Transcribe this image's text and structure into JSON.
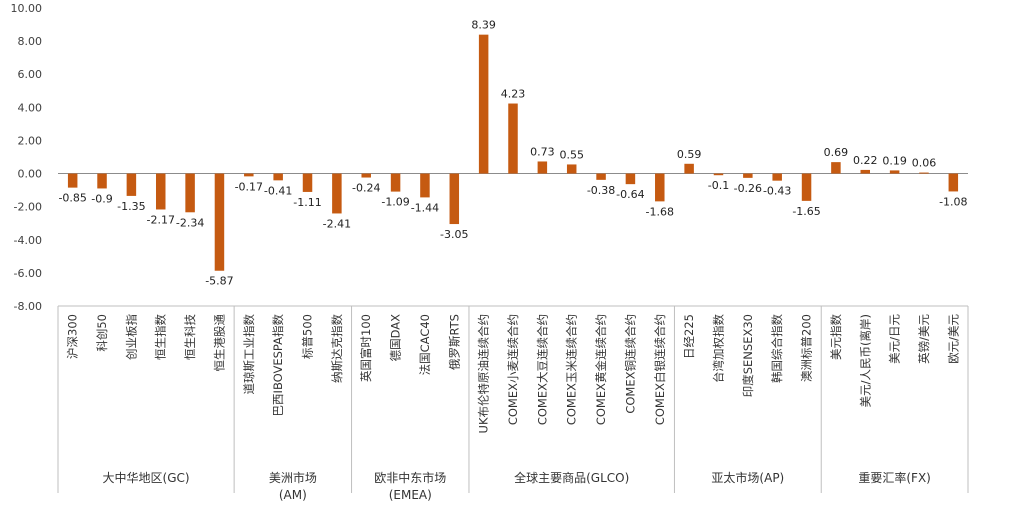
{
  "chart_data": {
    "type": "bar",
    "title": "",
    "xlabel": "",
    "ylabel": "",
    "ylim": [
      -8,
      10
    ],
    "yticks": [
      "10.00",
      "8.00",
      "6.00",
      "4.00",
      "2.00",
      "0.00",
      "-2.00",
      "-4.00",
      "-6.00",
      "-8.00"
    ],
    "grid": false,
    "legend": "none",
    "bar_color": "#C55A11",
    "categories": [
      "沪深300",
      "科创50",
      "创业板指",
      "恒生指数",
      "恒生科技",
      "恒生港股通",
      "道琼斯工业指数",
      "巴西IBOVESPA指数",
      "标普500",
      "纳斯达克指数",
      "英国富时100",
      "德国DAX",
      "法国CAC40",
      "俄罗斯RTS",
      "UK布伦特原油连续合约",
      "COMEX小麦连续合约",
      "COMEX大豆连续合约",
      "COMEX玉米连续合约",
      "COMEX黄金连续合约",
      "COMEX铜连续合约",
      "COMEX白银连续合约",
      "日经225",
      "台湾加权指数",
      "印度SENSEX30",
      "韩国综合指数",
      "澳洲标普200",
      "美元指数",
      "美元/人民币(离岸)",
      "美元/日元",
      "英镑/美元",
      "欧元/美元"
    ],
    "values": [
      -0.85,
      -0.9,
      -1.35,
      -2.17,
      -2.34,
      -5.87,
      -0.17,
      -0.41,
      -1.11,
      -2.41,
      -0.24,
      -1.09,
      -1.44,
      -3.05,
      8.39,
      4.23,
      0.73,
      0.55,
      -0.38,
      -0.64,
      -1.68,
      0.59,
      -0.1,
      -0.26,
      -0.43,
      -1.65,
      0.69,
      0.22,
      0.19,
      0.06,
      -1.08
    ],
    "value_labels": [
      "-0.85",
      "-0.9",
      "-1.35",
      "-2.17",
      "-2.34",
      "-5.87",
      "-0.17",
      "-0.41",
      "-1.11",
      "-2.41",
      "-0.24",
      "-1.09",
      "-1.44",
      "-3.05",
      "8.39",
      "4.23",
      "0.73",
      "0.55",
      "-0.38",
      "-0.64",
      "-1.68",
      "0.59",
      "-0.1",
      "-0.26",
      "-0.43",
      "-1.65",
      "0.69",
      "0.22",
      "0.19",
      "0.06",
      "-1.08"
    ],
    "groups": [
      {
        "label": "大中华地区(GC)",
        "count": 6
      },
      {
        "label": "美洲市场(AM)",
        "count": 4
      },
      {
        "label": "欧非中东市场(EMEA)",
        "count": 4
      },
      {
        "label": "全球主要商品(GLCO)",
        "count": 7
      },
      {
        "label": "亚太市场(AP)",
        "count": 5
      },
      {
        "label": "重要汇率(FX)",
        "count": 5
      }
    ]
  }
}
